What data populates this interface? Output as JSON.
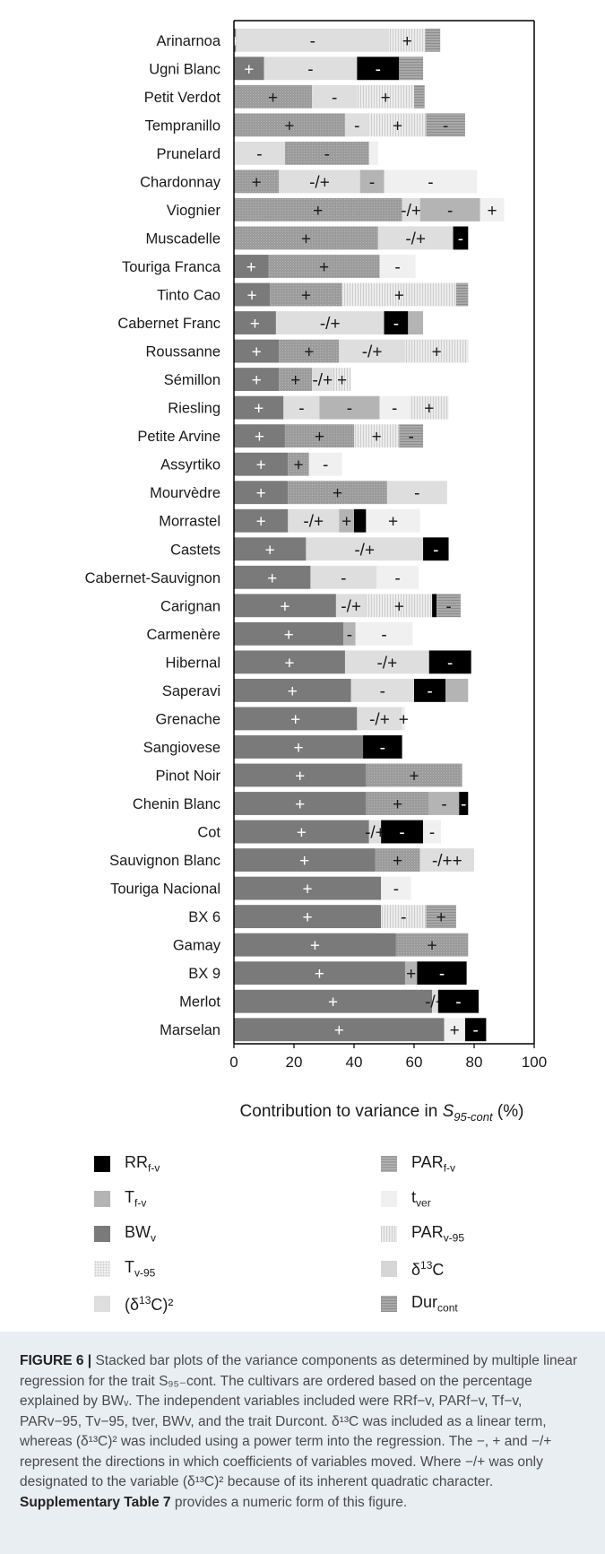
{
  "chart_data": {
    "type": "bar",
    "orientation": "horizontal",
    "stacked": true,
    "xlabel_prefix": "Contribution to variance in ",
    "xlabel_var": "S",
    "xlabel_sub": "95-cont",
    "xlabel_suffix": " (%)",
    "xlim": [
      0,
      100
    ],
    "xticks": [
      "0",
      "20",
      "40",
      "60",
      "80",
      "100"
    ],
    "categories": [
      "Arinarnoa",
      "Ugni Blanc",
      "Petit Verdot",
      "Tempranillo",
      "Prunelard",
      "Chardonnay",
      "Viognier",
      "Muscadelle",
      "Touriga Franca",
      "Tinto Cao",
      "Cabernet Franc",
      "Roussanne",
      "Sémillon",
      "Riesling",
      "Petite Arvine",
      "Assyrtiko",
      "Mourvèdre",
      "Morrastel",
      "Castets",
      "Cabernet-Sauvignon",
      "Carignan",
      "Carmenère",
      "Hibernal",
      "Saperavi",
      "Grenache",
      "Sangiovese",
      "Pinot Noir",
      "Chenin Blanc",
      "Cot",
      "Sauvignon Blanc",
      "Touriga Nacional",
      "BX 6",
      "Gamay",
      "BX 9",
      "Merlot",
      "Marselan"
    ],
    "components": [
      {
        "key": "RR",
        "name": "RR",
        "sub": "f-v",
        "sup": "",
        "color": "#000000"
      },
      {
        "key": "T",
        "name": "T",
        "sub": "f-v",
        "sup": "",
        "color": "#b4b4b4"
      },
      {
        "key": "BW",
        "name": "BW",
        "sub": "v",
        "sup": "",
        "color": "#7a7a7a"
      },
      {
        "key": "Tv95",
        "name": "T",
        "sub": "v-95",
        "sup": "",
        "color": "#f2f2f2"
      },
      {
        "key": "D2",
        "name": "(δ",
        "sub": "",
        "sup": "13",
        "tail": "C)²",
        "color": "#dedede"
      },
      {
        "key": "PAR",
        "name": "PAR",
        "sub": "f-v",
        "sup": "",
        "color": "#9e9e9e"
      },
      {
        "key": "tver",
        "name": "t",
        "sub": "ver",
        "sup": "",
        "color": "#f0f0f0"
      },
      {
        "key": "PARv95",
        "name": "PAR",
        "sub": "v-95",
        "sup": "",
        "color": "#ebebeb"
      },
      {
        "key": "D13C",
        "name": "δ",
        "sub": "",
        "sup": "13",
        "tail": "C",
        "color": "#d6d6d6"
      },
      {
        "key": "Dur",
        "name": "Dur",
        "sub": "cont",
        "sup": "",
        "color": "#a8a8a8"
      }
    ],
    "rows": [
      [
        {
          "c": "BW",
          "v": 0.7,
          "s": "+"
        },
        {
          "c": "D2",
          "v": 51,
          "s": "-"
        },
        {
          "c": "PARv95",
          "v": 12,
          "s": "+"
        },
        {
          "c": "Dur",
          "v": 5,
          "s": ""
        }
      ],
      [
        {
          "c": "BW",
          "v": 10,
          "s": "+"
        },
        {
          "c": "D2",
          "v": 31,
          "s": "-"
        },
        {
          "c": "RR",
          "v": 14,
          "s": "-"
        },
        {
          "c": "Dur",
          "v": 8,
          "s": ""
        }
      ],
      [
        {
          "c": "PAR",
          "v": 26,
          "s": "+"
        },
        {
          "c": "D2",
          "v": 15,
          "s": "-"
        },
        {
          "c": "PARv95",
          "v": 19,
          "s": "+"
        },
        {
          "c": "Dur",
          "v": 3.5,
          "s": ""
        }
      ],
      [
        {
          "c": "PAR",
          "v": 37,
          "s": "+"
        },
        {
          "c": "D2",
          "v": 8,
          "s": "-"
        },
        {
          "c": "PARv95",
          "v": 19,
          "s": "+"
        },
        {
          "c": "Dur",
          "v": 13,
          "s": "-"
        }
      ],
      [
        {
          "c": "D2",
          "v": 17,
          "s": "-"
        },
        {
          "c": "PAR",
          "v": 28,
          "s": "-"
        },
        {
          "c": "tver",
          "v": 3,
          "s": ""
        }
      ],
      [
        {
          "c": "PAR",
          "v": 15,
          "s": "+"
        },
        {
          "c": "D2",
          "v": 27,
          "s": "-/+"
        },
        {
          "c": "T",
          "v": 8,
          "s": "-"
        },
        {
          "c": "tver",
          "v": 31,
          "s": "-"
        }
      ],
      [
        {
          "c": "PAR",
          "v": 56,
          "s": "+"
        },
        {
          "c": "D2",
          "v": 6,
          "s": "-/+"
        },
        {
          "c": "T",
          "v": 20,
          "s": "-"
        },
        {
          "c": "tver",
          "v": 8,
          "s": "+"
        }
      ],
      [
        {
          "c": "PAR",
          "v": 48,
          "s": "+"
        },
        {
          "c": "D2",
          "v": 25,
          "s": "-/+"
        },
        {
          "c": "RR",
          "v": 5,
          "s": "-"
        }
      ],
      [
        {
          "c": "BW",
          "v": 11.5,
          "s": "+"
        },
        {
          "c": "PAR",
          "v": 37,
          "s": "+"
        },
        {
          "c": "tver",
          "v": 12,
          "s": "-"
        }
      ],
      [
        {
          "c": "BW",
          "v": 12,
          "s": "+"
        },
        {
          "c": "PAR",
          "v": 24,
          "s": "+"
        },
        {
          "c": "PARv95",
          "v": 38,
          "s": "+"
        },
        {
          "c": "Dur",
          "v": 4,
          "s": ""
        }
      ],
      [
        {
          "c": "BW",
          "v": 14,
          "s": "+"
        },
        {
          "c": "D2",
          "v": 36,
          "s": "-/+"
        },
        {
          "c": "RR",
          "v": 8,
          "s": "-"
        },
        {
          "c": "T",
          "v": 5,
          "s": ""
        }
      ],
      [
        {
          "c": "BW",
          "v": 15,
          "s": "+"
        },
        {
          "c": "PAR",
          "v": 20,
          "s": "+"
        },
        {
          "c": "D2",
          "v": 22,
          "s": "-/+"
        },
        {
          "c": "PARv95",
          "v": 21,
          "s": "+"
        }
      ],
      [
        {
          "c": "BW",
          "v": 15,
          "s": "+"
        },
        {
          "c": "PAR",
          "v": 11,
          "s": "+"
        },
        {
          "c": "D2",
          "v": 7,
          "s": "-/+"
        },
        {
          "c": "PARv95",
          "v": 6,
          "s": "+"
        }
      ],
      [
        {
          "c": "BW",
          "v": 16.5,
          "s": "+"
        },
        {
          "c": "D2",
          "v": 12,
          "s": "-"
        },
        {
          "c": "T",
          "v": 20,
          "s": "-"
        },
        {
          "c": "tver",
          "v": 10,
          "s": "-"
        },
        {
          "c": "PARv95",
          "v": 13,
          "s": "+"
        }
      ],
      [
        {
          "c": "BW",
          "v": 17,
          "s": "+"
        },
        {
          "c": "PAR",
          "v": 23,
          "s": "+"
        },
        {
          "c": "PARv95",
          "v": 15,
          "s": "+"
        },
        {
          "c": "Dur",
          "v": 8,
          "s": "-"
        }
      ],
      [
        {
          "c": "BW",
          "v": 18,
          "s": "+"
        },
        {
          "c": "PAR",
          "v": 7,
          "s": "+"
        },
        {
          "c": "tver",
          "v": 11,
          "s": "-"
        }
      ],
      [
        {
          "c": "BW",
          "v": 18,
          "s": "+"
        },
        {
          "c": "PAR",
          "v": 33,
          "s": "+"
        },
        {
          "c": "D2",
          "v": 20,
          "s": "-"
        }
      ],
      [
        {
          "c": "BW",
          "v": 18,
          "s": "+"
        },
        {
          "c": "D2",
          "v": 17,
          "s": "-/+"
        },
        {
          "c": "T",
          "v": 5,
          "s": "+"
        },
        {
          "c": "RR",
          "v": 4,
          "s": ""
        },
        {
          "c": "tver",
          "v": 18,
          "s": "+"
        }
      ],
      [
        {
          "c": "BW",
          "v": 24,
          "s": "+"
        },
        {
          "c": "D2",
          "v": 39,
          "s": "-/+"
        },
        {
          "c": "RR",
          "v": 8.5,
          "s": "-"
        }
      ],
      [
        {
          "c": "BW",
          "v": 25.5,
          "s": "+"
        },
        {
          "c": "D2",
          "v": 22,
          "s": "-"
        },
        {
          "c": "tver",
          "v": 14,
          "s": "-"
        }
      ],
      [
        {
          "c": "BW",
          "v": 34,
          "s": "+"
        },
        {
          "c": "D2",
          "v": 10,
          "s": "-/+"
        },
        {
          "c": "PARv95",
          "v": 22,
          "s": "+"
        },
        {
          "c": "RR",
          "v": 1.5,
          "s": ""
        },
        {
          "c": "Dur",
          "v": 8,
          "s": "-"
        }
      ],
      [
        {
          "c": "BW",
          "v": 36.5,
          "s": "+"
        },
        {
          "c": "T",
          "v": 4,
          "s": "-"
        },
        {
          "c": "tver",
          "v": 19,
          "s": "-"
        }
      ],
      [
        {
          "c": "BW",
          "v": 37,
          "s": "+"
        },
        {
          "c": "D2",
          "v": 28,
          "s": "-/+"
        },
        {
          "c": "RR",
          "v": 14,
          "s": "-"
        }
      ],
      [
        {
          "c": "BW",
          "v": 39,
          "s": "+"
        },
        {
          "c": "D2",
          "v": 21,
          "s": "-"
        },
        {
          "c": "RR",
          "v": 10.5,
          "s": "-"
        },
        {
          "c": "T",
          "v": 7.5,
          "s": ""
        }
      ],
      [
        {
          "c": "BW",
          "v": 41,
          "s": "+"
        },
        {
          "c": "D2",
          "v": 15,
          "s": "-/+"
        },
        {
          "c": "tver",
          "v": 1,
          "s": "+"
        }
      ],
      [
        {
          "c": "BW",
          "v": 43,
          "s": "+"
        },
        {
          "c": "RR",
          "v": 13,
          "s": "-"
        }
      ],
      [
        {
          "c": "BW",
          "v": 44,
          "s": "+"
        },
        {
          "c": "PAR",
          "v": 32,
          "s": "+"
        }
      ],
      [
        {
          "c": "BW",
          "v": 44,
          "s": "+"
        },
        {
          "c": "PAR",
          "v": 21,
          "s": "+"
        },
        {
          "c": "T",
          "v": 10,
          "s": "-"
        },
        {
          "c": "RR",
          "v": 3,
          "s": "-"
        }
      ],
      [
        {
          "c": "BW",
          "v": 45,
          "s": "+"
        },
        {
          "c": "D2",
          "v": 4,
          "s": "-/+"
        },
        {
          "c": "RR",
          "v": 14,
          "s": "-"
        },
        {
          "c": "tver",
          "v": 6,
          "s": "-"
        }
      ],
      [
        {
          "c": "BW",
          "v": 47,
          "s": "+"
        },
        {
          "c": "PAR",
          "v": 15,
          "s": "+"
        },
        {
          "c": "D2",
          "v": 18,
          "s": "-/++"
        }
      ],
      [
        {
          "c": "BW",
          "v": 49,
          "s": "+"
        },
        {
          "c": "tver",
          "v": 10,
          "s": "-"
        }
      ],
      [
        {
          "c": "BW",
          "v": 49,
          "s": "+"
        },
        {
          "c": "PARv95",
          "v": 15,
          "s": "-"
        },
        {
          "c": "Dur",
          "v": 10,
          "s": "+"
        }
      ],
      [
        {
          "c": "BW",
          "v": 54,
          "s": "+"
        },
        {
          "c": "PAR",
          "v": 24,
          "s": "+"
        }
      ],
      [
        {
          "c": "BW",
          "v": 57,
          "s": "+"
        },
        {
          "c": "T",
          "v": 4,
          "s": "+"
        },
        {
          "c": "RR",
          "v": 16.5,
          "s": "-"
        }
      ],
      [
        {
          "c": "BW",
          "v": 66,
          "s": "+"
        },
        {
          "c": "D2",
          "v": 2,
          "s": "-/+"
        },
        {
          "c": "RR",
          "v": 13.5,
          "s": "-"
        }
      ],
      [
        {
          "c": "BW",
          "v": 70,
          "s": "+"
        },
        {
          "c": "tver",
          "v": 7,
          "s": "+"
        },
        {
          "c": "RR",
          "v": 7,
          "s": "-"
        }
      ]
    ]
  },
  "caption": {
    "label": "FIGURE 6 |",
    "body": " Stacked bar plots of the variance components as determined by multiple linear regression for the trait S₉₅₋cont. The cultivars are ordered based on the percentage explained by BWᵥ. The independent variables included were RRf−v, PARf−v, Tf−v, PARv−95, Tv−95, tver, BWv, and the trait Durcont. δ¹³C was included as a linear term, whereas (δ¹³C)² was included using a power term into the regression. The −, + and −/+ represent the directions in which coefficients of variables moved. Where −/+ was only designated to the variable (δ¹³C)² because of its inherent quadratic character. ",
    "bold": "Supplementary Table 7",
    "tail": " provides a numeric form of this figure."
  }
}
